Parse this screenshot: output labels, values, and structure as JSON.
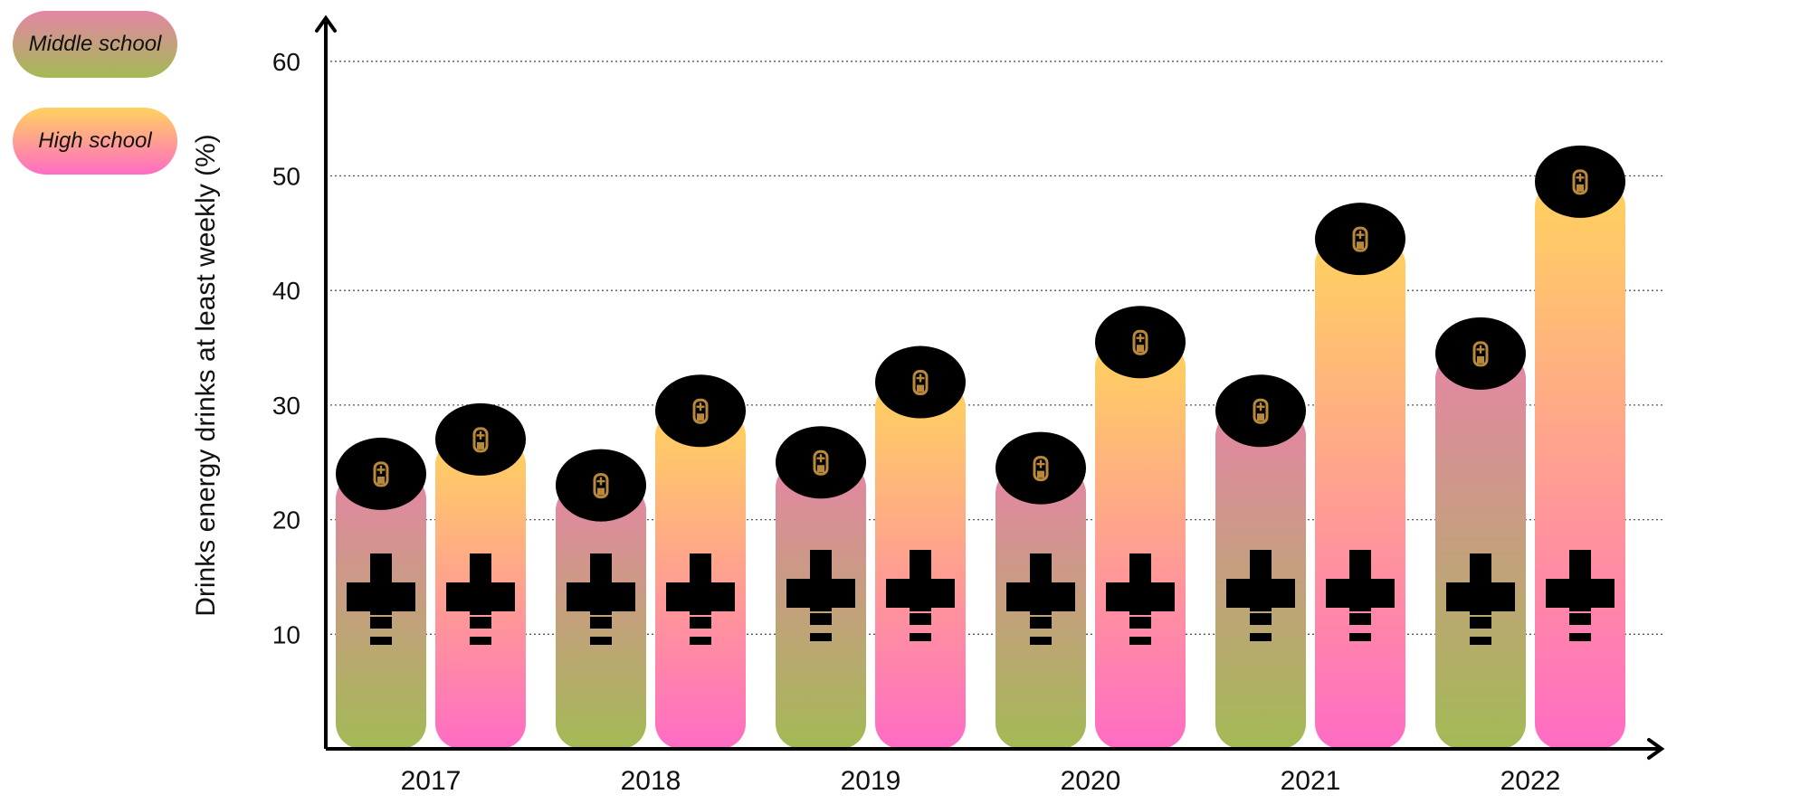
{
  "chart_data": {
    "type": "bar",
    "title": "",
    "xlabel": "",
    "ylabel": "Drinks energy drinks at least weekly (%)",
    "ylim": [
      0,
      64
    ],
    "yticks": [
      10,
      20,
      30,
      40,
      50,
      60
    ],
    "grid": "horizontal dotted",
    "legend_position": "top-left",
    "categories": [
      "2017",
      "2018",
      "2019",
      "2020",
      "2021",
      "2022"
    ],
    "series": [
      {
        "name": "Middle school",
        "values": [
          24,
          23,
          25,
          24.5,
          29.5,
          34.5
        ],
        "gradient": [
          "#e486a4",
          "#a3ba55"
        ]
      },
      {
        "name": "High school",
        "values": [
          27,
          29.5,
          32,
          35.5,
          44.5,
          49.5
        ],
        "gradient": [
          "#ffd25e",
          "#ff6cc4"
        ]
      }
    ],
    "bar_style": "battery"
  }
}
